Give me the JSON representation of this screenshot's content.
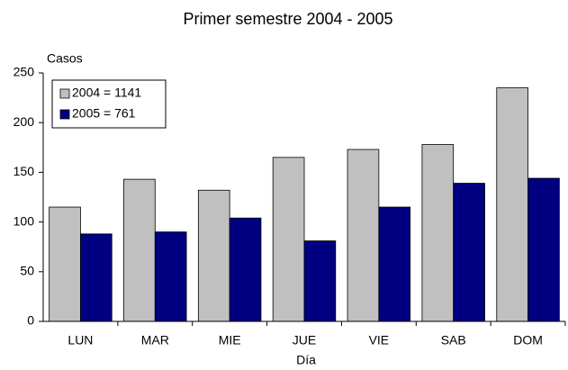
{
  "chart_data": {
    "type": "bar",
    "title": "Primer semestre 2004 - 2005",
    "y_label": "Casos",
    "x_label": "Día",
    "categories": [
      "LUN",
      "MAR",
      "MIE",
      "JUE",
      "VIE",
      "SAB",
      "DOM"
    ],
    "series": [
      {
        "name": "2004 = 1141",
        "color": "#c0c0c0",
        "values": [
          115,
          143,
          132,
          165,
          173,
          178,
          235
        ]
      },
      {
        "name": "2005 = 761",
        "color": "#000080",
        "values": [
          88,
          90,
          104,
          81,
          115,
          139,
          144
        ]
      }
    ],
    "ylim": [
      0,
      250
    ],
    "yticks": [
      0,
      50,
      100,
      150,
      200,
      250
    ],
    "grid": false,
    "legend": "upper left"
  }
}
